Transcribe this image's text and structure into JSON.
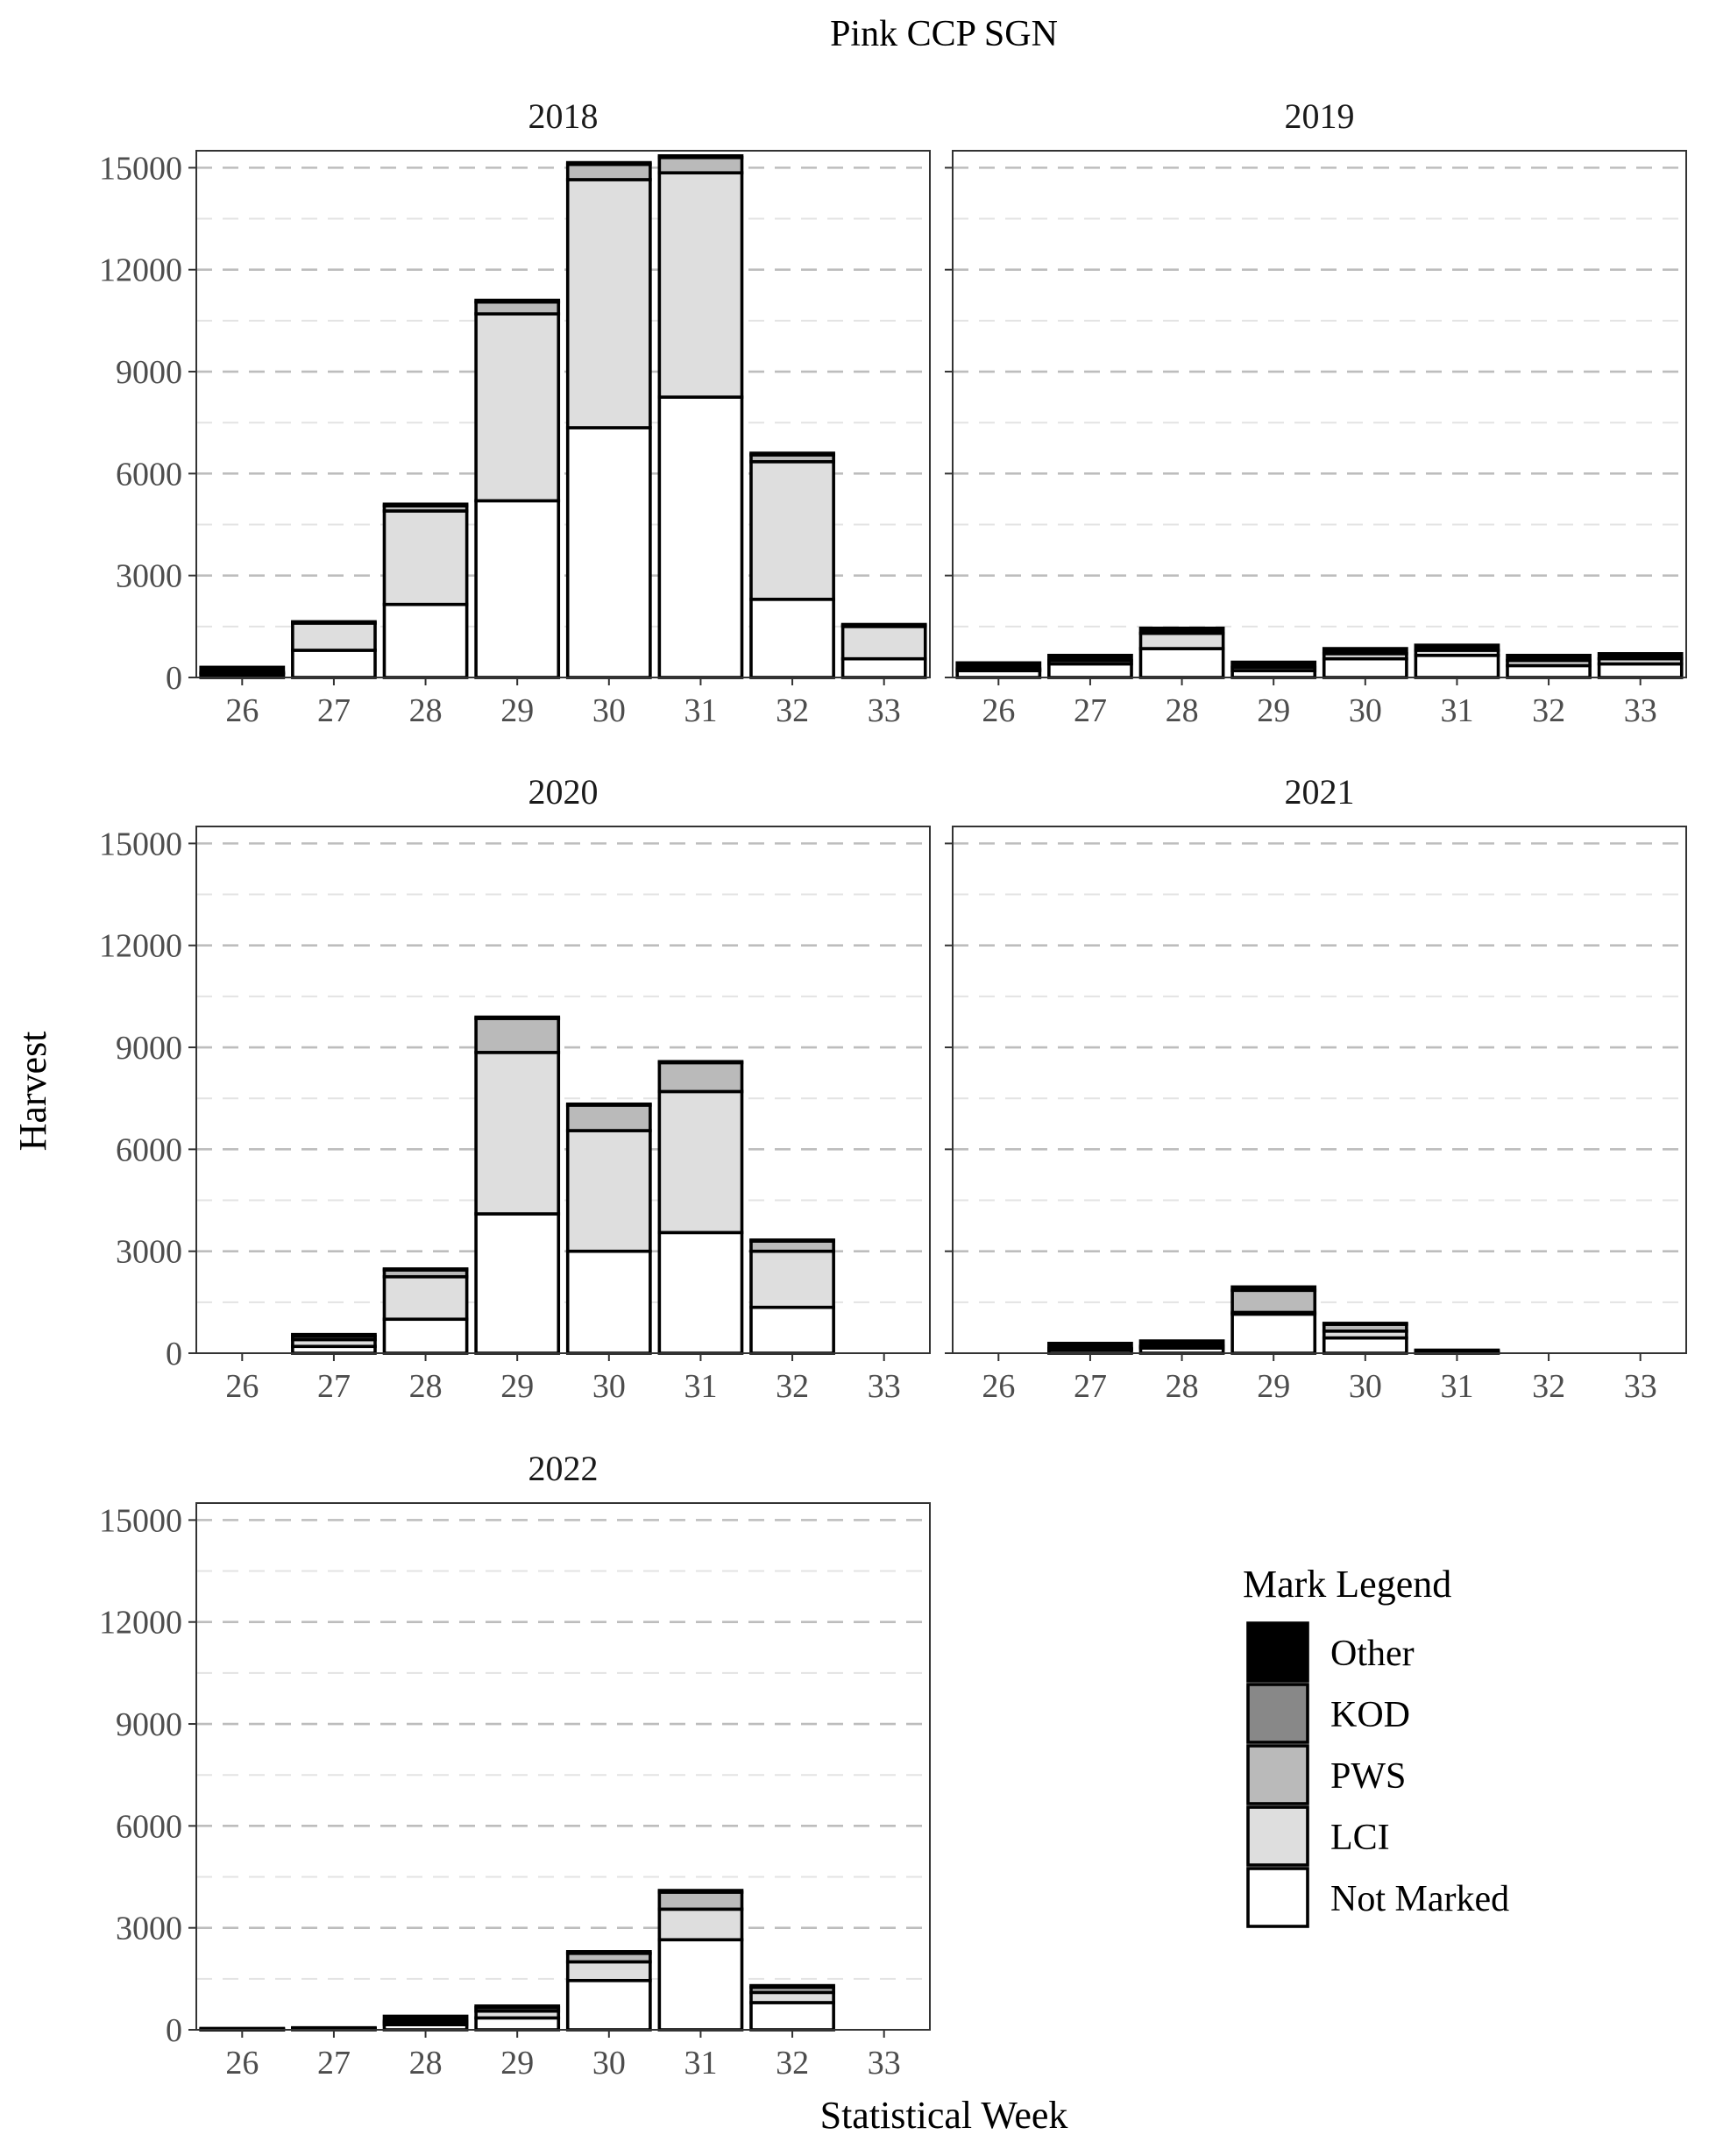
{
  "title": "Pink CCP SGN",
  "chart_data": {
    "type": "bar",
    "stacked": true,
    "title": "Pink CCP SGN",
    "xlabel": "Statistical Week",
    "ylabel": "Harvest",
    "ylim": [
      0,
      15500
    ],
    "yticks": [
      0,
      3000,
      6000,
      9000,
      12000,
      15000
    ],
    "categories": [
      "26",
      "27",
      "28",
      "29",
      "30",
      "31",
      "32",
      "33"
    ],
    "grid": true,
    "legend": {
      "title": "Mark Legend",
      "placement": "bottom-right",
      "order": [
        "Other",
        "KOD",
        "PWS",
        "LCI",
        "Not Marked"
      ]
    },
    "stack_order": [
      "Not Marked",
      "LCI",
      "PWS",
      "KOD",
      "Other"
    ],
    "colors": {
      "Not Marked": "#ffffff",
      "LCI": "#dedede",
      "PWS": "#bababa",
      "KOD": "#888888",
      "Other": "#000000"
    },
    "panels": [
      {
        "label": "2018",
        "series": [
          {
            "name": "Not Marked",
            "values": [
              80,
              800,
              2150,
              5200,
              7350,
              8250,
              2300,
              550
            ]
          },
          {
            "name": "LCI",
            "values": [
              40,
              800,
              2750,
              5500,
              7300,
              6600,
              4050,
              950
            ]
          },
          {
            "name": "PWS",
            "values": [
              30,
              0,
              150,
              350,
              450,
              450,
              200,
              30
            ]
          },
          {
            "name": "KOD",
            "values": [
              0,
              0,
              0,
              0,
              0,
              0,
              0,
              0
            ]
          },
          {
            "name": "Other",
            "values": [
              150,
              40,
              50,
              50,
              50,
              50,
              50,
              30
            ]
          }
        ]
      },
      {
        "label": "2019",
        "series": [
          {
            "name": "Not Marked",
            "values": [
              200,
              400,
              850,
              200,
              550,
              650,
              350,
              400
            ]
          },
          {
            "name": "LCI",
            "values": [
              50,
              100,
              450,
              100,
              150,
              150,
              150,
              150
            ]
          },
          {
            "name": "PWS",
            "values": [
              0,
              0,
              0,
              0,
              0,
              0,
              0,
              0
            ]
          },
          {
            "name": "KOD",
            "values": [
              0,
              0,
              0,
              0,
              0,
              0,
              0,
              0
            ]
          },
          {
            "name": "Other",
            "values": [
              180,
              150,
              150,
              150,
              150,
              150,
              150,
              150
            ]
          }
        ]
      },
      {
        "label": "2020",
        "series": [
          {
            "name": "Not Marked",
            "values": [
              0,
              200,
              1000,
              4100,
              3000,
              3550,
              1350,
              0
            ]
          },
          {
            "name": "LCI",
            "values": [
              0,
              200,
              1250,
              4750,
              3550,
              4150,
              1650,
              0
            ]
          },
          {
            "name": "PWS",
            "values": [
              0,
              100,
              200,
              1000,
              750,
              850,
              300,
              0
            ]
          },
          {
            "name": "KOD",
            "values": [
              0,
              0,
              0,
              0,
              0,
              0,
              0,
              0
            ]
          },
          {
            "name": "Other",
            "values": [
              0,
              50,
              30,
              40,
              30,
              30,
              30,
              0
            ]
          }
        ]
      },
      {
        "label": "2021",
        "series": [
          {
            "name": "Not Marked",
            "values": [
              0,
              100,
              150,
              1150,
              450,
              20,
              0,
              0
            ]
          },
          {
            "name": "LCI",
            "values": [
              0,
              20,
              30,
              50,
              200,
              10,
              0,
              0
            ]
          },
          {
            "name": "PWS",
            "values": [
              0,
              20,
              30,
              650,
              200,
              10,
              0,
              0
            ]
          },
          {
            "name": "KOD",
            "values": [
              0,
              0,
              0,
              0,
              0,
              0,
              0,
              0
            ]
          },
          {
            "name": "Other",
            "values": [
              0,
              150,
              150,
              100,
              30,
              50,
              0,
              0
            ]
          }
        ]
      },
      {
        "label": "2022",
        "series": [
          {
            "name": "Not Marked",
            "values": [
              10,
              20,
              150,
              350,
              1450,
              2650,
              800,
              0
            ]
          },
          {
            "name": "LCI",
            "values": [
              5,
              10,
              50,
              200,
              550,
              900,
              300,
              0
            ]
          },
          {
            "name": "PWS",
            "values": [
              5,
              10,
              50,
              100,
              250,
              500,
              150,
              0
            ]
          },
          {
            "name": "KOD",
            "values": [
              0,
              0,
              0,
              0,
              0,
              0,
              0,
              0
            ]
          },
          {
            "name": "Other",
            "values": [
              20,
              20,
              150,
              50,
              50,
              50,
              50,
              0
            ]
          }
        ]
      }
    ]
  }
}
